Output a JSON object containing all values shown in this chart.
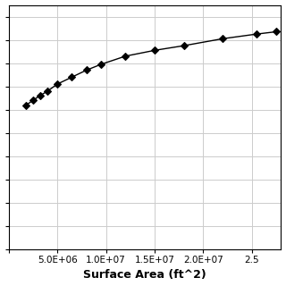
{
  "x": [
    1800000,
    2500000,
    3200000,
    4000000,
    5000000,
    6500000,
    8000000,
    9500000,
    12000000,
    15000000,
    18000000,
    22000000,
    25500000,
    27500000
  ],
  "y": [
    0.62,
    0.64,
    0.66,
    0.68,
    0.71,
    0.74,
    0.77,
    0.795,
    0.83,
    0.855,
    0.875,
    0.905,
    0.925,
    0.935
  ],
  "xlabel": "Surface Area (ft^2)",
  "line_color": "#000000",
  "marker": "D",
  "marker_size": 4.5,
  "marker_facecolor": "#000000",
  "background_color": "#ffffff",
  "grid_color": "#cccccc",
  "xlim": [
    0,
    28000000
  ],
  "ylim": [
    0.0,
    1.05
  ],
  "figsize": [
    3.2,
    3.2
  ],
  "dpi": 100,
  "n_ygrid": 10,
  "n_xgrid": 6
}
